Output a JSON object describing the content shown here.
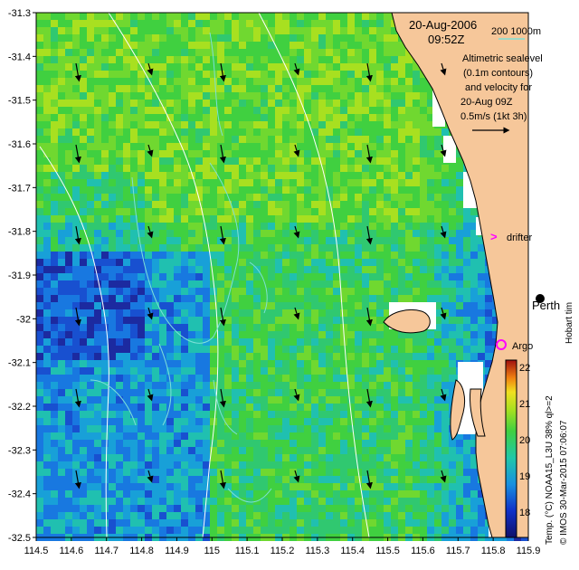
{
  "map": {
    "date_label": "20-Aug-2006",
    "time_label": "09:52Z",
    "scale_label": "200  1000m",
    "description_lines": [
      "Altimetric sealevel",
      "(0.1m contours)",
      "and velocity for",
      "20-Aug 09Z",
      "0.5m/s (1kt 3h)"
    ],
    "drifter_label": "drifter",
    "argo_label": "Argo",
    "perth_label": "Perth",
    "hobart_label": "Hobart tim",
    "credit_label": "Temp. (°C) NOAA15_L3U 38% ql>=2",
    "imos_label": "© IMOS 30-Mar-2015 07:06:07",
    "x_ticks": [
      "114.5",
      "114.6",
      "114.7",
      "114.8",
      "114.9",
      "115",
      "115.1",
      "115.2",
      "115.3",
      "115.4",
      "115.5",
      "115.6",
      "115.7",
      "115.8",
      "115.9"
    ],
    "y_ticks": [
      "-31.3",
      "-31.4",
      "-31.5",
      "-31.6",
      "-31.7",
      "-31.8",
      "-31.9",
      "-32",
      "-32.1",
      "-32.2",
      "-32.3",
      "-32.4",
      "-32.5"
    ],
    "colorbar_ticks": [
      "22",
      "21",
      "20",
      "19",
      "18"
    ],
    "colors": {
      "land": "#f6c79a",
      "drifter_marker": "#ff00ff",
      "argo_marker": "#ff00ff",
      "contour": "#7de0d8",
      "isobath": "#ffffff"
    }
  }
}
